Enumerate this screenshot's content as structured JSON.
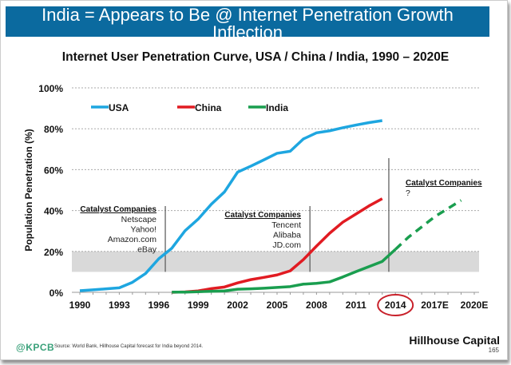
{
  "banner_title": "India = Appears to Be @ Internet Penetration Growth Inflection",
  "footer": {
    "logo": "@KPCB",
    "source": "Source: World Bank, Hillhouse Capital forecast for India beyond 2014.",
    "brand": "Hillhouse Capital",
    "page_number": "165"
  },
  "colors": {
    "banner": "#0b6a9f",
    "usa": "#1ea6e0",
    "china": "#e11b22",
    "india": "#1a9e4f",
    "highlight_circle": "#c8202a",
    "band": "#d9d9d9"
  },
  "chart_data": {
    "type": "line",
    "title": "Internet User Penetration Curve, USA / China / India, 1990 – 2020E",
    "xlabel": "",
    "ylabel": "Population Penetration (%)",
    "ylim": [
      0,
      100
    ],
    "yticks": [
      "0%",
      "20%",
      "40%",
      "60%",
      "80%",
      "100%"
    ],
    "xlim": [
      1990,
      2020
    ],
    "xticks": [
      "1990",
      "1993",
      "1996",
      "1999",
      "2002",
      "2005",
      "2008",
      "2011",
      "2014",
      "2017E",
      "2020E"
    ],
    "highlighted_xtick": "2014",
    "grid": "horizontal dotted",
    "legend_position": "top-left",
    "shaded_band": [
      10,
      20
    ],
    "series": [
      {
        "name": "USA",
        "x": [
          1990,
          1991,
          1992,
          1993,
          1994,
          1995,
          1996,
          1997,
          1998,
          1999,
          2000,
          2001,
          2002,
          2003,
          2004,
          2005,
          2006,
          2007,
          2008,
          2009,
          2010,
          2011,
          2012,
          2013
        ],
        "values": [
          0.8,
          1.2,
          1.7,
          2.2,
          4.9,
          9.2,
          16.4,
          21.6,
          30.1,
          35.8,
          43.1,
          49.1,
          58.8,
          61.7,
          64.8,
          68,
          69,
          75,
          78,
          79,
          80.5,
          81.8,
          83,
          84
        ]
      },
      {
        "name": "China",
        "x": [
          1997,
          1998,
          1999,
          2000,
          2001,
          2002,
          2003,
          2004,
          2005,
          2006,
          2007,
          2008,
          2009,
          2010,
          2011,
          2012,
          2013
        ],
        "values": [
          0,
          0.2,
          0.7,
          1.8,
          2.6,
          4.6,
          6.2,
          7.3,
          8.5,
          10.5,
          16,
          22.6,
          28.9,
          34.3,
          38.3,
          42.3,
          45.8
        ]
      },
      {
        "name": "India",
        "x": [
          1997,
          1998,
          1999,
          2000,
          2001,
          2002,
          2003,
          2004,
          2005,
          2006,
          2007,
          2008,
          2009,
          2010,
          2011,
          2012,
          2013,
          2014
        ],
        "values": [
          0.1,
          0.1,
          0.3,
          0.5,
          0.7,
          1.5,
          1.7,
          2,
          2.4,
          2.8,
          4,
          4.4,
          5.1,
          7.5,
          10.1,
          12.6,
          15.1,
          21
        ]
      },
      {
        "name": "India (forecast)",
        "x": [
          2014,
          2015,
          2016,
          2017,
          2018,
          2019
        ],
        "values": [
          21,
          27,
          32,
          37,
          41,
          45
        ],
        "dashed": true
      }
    ],
    "annotations": [
      {
        "x": 1996.5,
        "heading": "Catalyst Companies",
        "items": [
          "Netscape",
          "Yahoo!",
          "Amazon.com",
          "eBay"
        ]
      },
      {
        "x": 2007.5,
        "heading": "Catalyst Companies",
        "items": [
          "Tencent",
          "Alibaba",
          "JD.com"
        ]
      },
      {
        "x": 2013.5,
        "heading": "Catalyst Companies",
        "items": [
          "?"
        ]
      }
    ]
  }
}
